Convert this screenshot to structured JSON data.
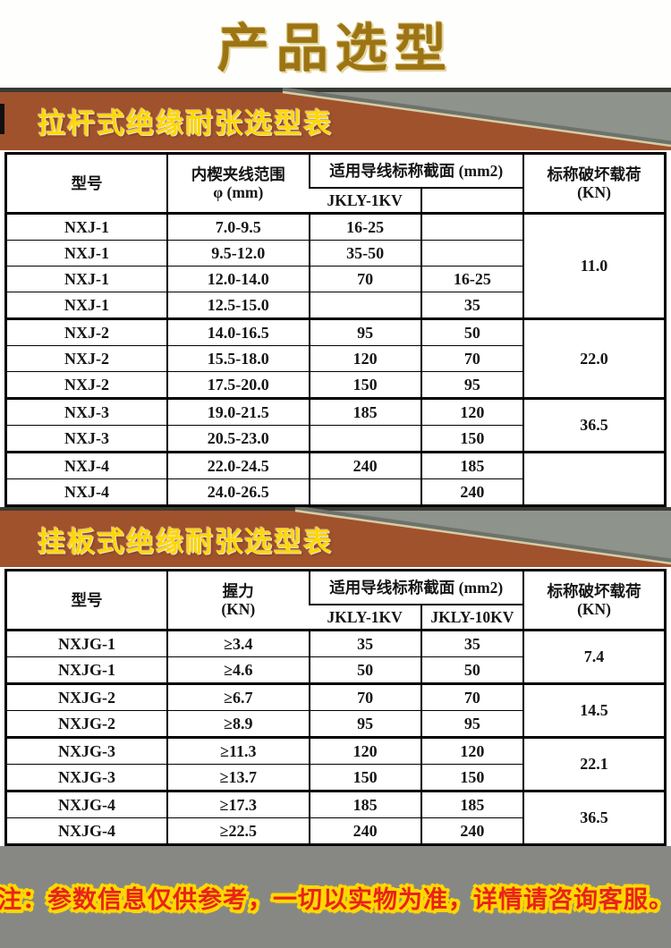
{
  "page": {
    "title": "产品选型",
    "note": "注：参数信息仅供参考，一切以实物为准，详情请咨询客服。"
  },
  "colors": {
    "banner_brown": "#a0522d",
    "banner_gray": "#8e938c",
    "banner_edge_beige": "#d6cda6",
    "banner_text_yellow": "#ffd800",
    "title_gold": "#9c7414",
    "footer_gray": "#878884",
    "note_red": "#e8231a",
    "note_outline_yellow": "#ffd800",
    "table_border": "#000000"
  },
  "tables": [
    {
      "banner_title": "拉杆式绝缘耐张选型表",
      "header": {
        "model": "型号",
        "param_line1": "内楔夹线范围",
        "param_line2": "φ (mm)",
        "section_group": "适用导线标称截面 (mm2)",
        "sub1": "JKLY-1KV",
        "sub2": "",
        "load_line1": "标称破坏载荷",
        "load_line2": "(KN)"
      },
      "groups": [
        {
          "load": "11.0",
          "rows": [
            [
              "NXJ-1",
              "7.0-9.5",
              "16-25",
              ""
            ],
            [
              "NXJ-1",
              "9.5-12.0",
              "35-50",
              ""
            ],
            [
              "NXJ-1",
              "12.0-14.0",
              "70",
              "16-25"
            ],
            [
              "NXJ-1",
              "12.5-15.0",
              "",
              "35"
            ]
          ]
        },
        {
          "load": "22.0",
          "rows": [
            [
              "NXJ-2",
              "14.0-16.5",
              "95",
              "50"
            ],
            [
              "NXJ-2",
              "15.5-18.0",
              "120",
              "70"
            ],
            [
              "NXJ-2",
              "17.5-20.0",
              "150",
              "95"
            ]
          ]
        },
        {
          "load": "36.5",
          "rows": [
            [
              "NXJ-3",
              "19.0-21.5",
              "185",
              "120"
            ],
            [
              "NXJ-3",
              "20.5-23.0",
              "",
              "150"
            ]
          ]
        },
        {
          "load": "",
          "rows": [
            [
              "NXJ-4",
              "22.0-24.5",
              "240",
              "185"
            ],
            [
              "NXJ-4",
              "24.0-26.5",
              "",
              "240"
            ]
          ]
        }
      ]
    },
    {
      "banner_title": "挂板式绝缘耐张选型表",
      "header": {
        "model": "型号",
        "param_line1": "握力",
        "param_line2": "(KN)",
        "section_group": "适用导线标称截面 (mm2)",
        "sub1": "JKLY-1KV",
        "sub2": "JKLY-10KV",
        "load_line1": "标称破坏载荷",
        "load_line2": "(KN)"
      },
      "groups": [
        {
          "load": "7.4",
          "rows": [
            [
              "NXJG-1",
              "≥3.4",
              "35",
              "35"
            ],
            [
              "NXJG-1",
              "≥4.6",
              "50",
              "50"
            ]
          ]
        },
        {
          "load": "14.5",
          "rows": [
            [
              "NXJG-2",
              "≥6.7",
              "70",
              "70"
            ],
            [
              "NXJG-2",
              "≥8.9",
              "95",
              "95"
            ]
          ]
        },
        {
          "load": "22.1",
          "rows": [
            [
              "NXJG-3",
              "≥11.3",
              "120",
              "120"
            ],
            [
              "NXJG-3",
              "≥13.7",
              "150",
              "150"
            ]
          ]
        },
        {
          "load": "36.5",
          "rows": [
            [
              "NXJG-4",
              "≥17.3",
              "185",
              "185"
            ],
            [
              "NXJG-4",
              "≥22.5",
              "240",
              "240"
            ]
          ]
        }
      ]
    }
  ]
}
